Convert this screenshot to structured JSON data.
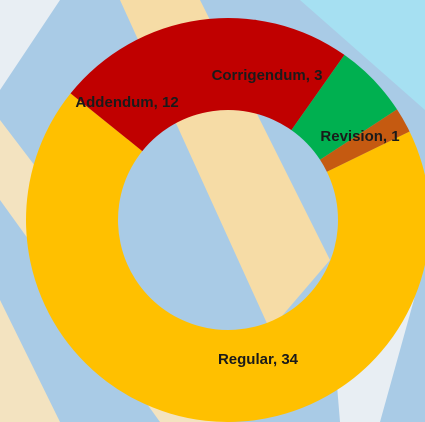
{
  "chart_data": {
    "type": "donut",
    "values": [
      34,
      12,
      3,
      1
    ],
    "value_labels": [
      "Regular, 34",
      "Addendum, 12",
      "Corrigendum, 3",
      "Revision, 1"
    ],
    "colors": [
      "#ffc000",
      "#c00000",
      "#00b050",
      "#c55a11"
    ]
  }
}
